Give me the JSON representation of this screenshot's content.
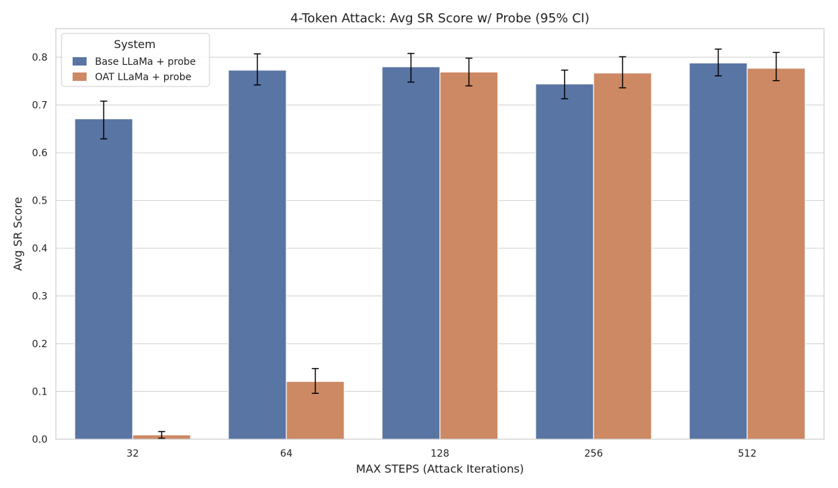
{
  "chart_data": {
    "type": "bar",
    "title": "4-Token Attack: Avg SR Score w/ Probe (95% CI)",
    "xlabel": "MAX STEPS (Attack Iterations)",
    "ylabel": "Avg SR Score",
    "categories": [
      "32",
      "64",
      "128",
      "256",
      "512"
    ],
    "ylim": [
      0.0,
      0.86
    ],
    "yticks": [
      "0.0",
      "0.1",
      "0.2",
      "0.3",
      "0.4",
      "0.5",
      "0.6",
      "0.7",
      "0.8"
    ],
    "grid": "horizontal",
    "legend": {
      "title": "System",
      "placement": "top-left"
    },
    "series": [
      {
        "name": "Base LLaMa + probe",
        "color": "#5975a4",
        "values": [
          0.671,
          0.773,
          0.78,
          0.744,
          0.788
        ],
        "ci_low": [
          0.629,
          0.742,
          0.748,
          0.713,
          0.761
        ],
        "ci_high": [
          0.708,
          0.807,
          0.808,
          0.773,
          0.817
        ]
      },
      {
        "name": "OAT LLaMa + probe",
        "color": "#cc8963",
        "values": [
          0.009,
          0.121,
          0.769,
          0.767,
          0.777
        ],
        "ci_low": [
          0.002,
          0.096,
          0.74,
          0.736,
          0.751
        ],
        "ci_high": [
          0.016,
          0.148,
          0.798,
          0.801,
          0.81
        ]
      }
    ]
  }
}
